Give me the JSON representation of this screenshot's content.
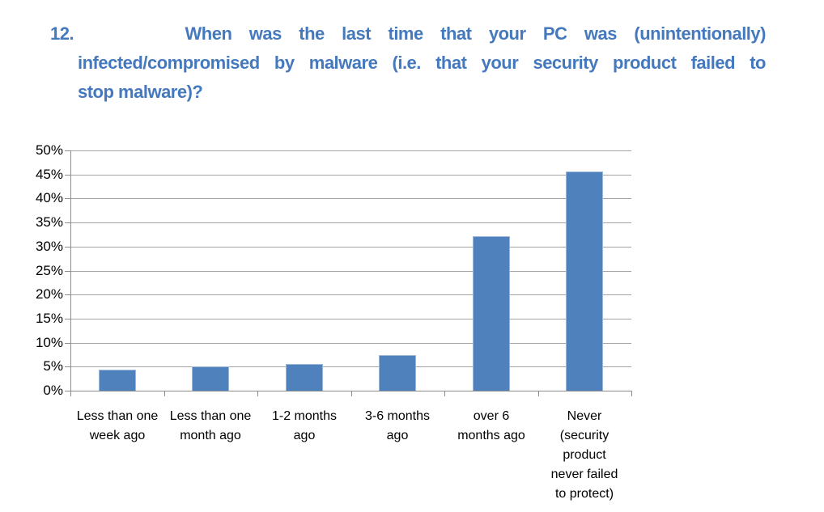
{
  "title": {
    "number": "12.",
    "line1": "When was the last time that your PC was (unintentionally)",
    "line2": "infected/compromised by malware (i.e. that your security product failed to",
    "line3": "stop malware)?"
  },
  "chart_data": {
    "type": "bar",
    "title": "",
    "xlabel": "",
    "ylabel": "",
    "categories": [
      "Less than one week ago",
      "Less than one month ago",
      "1-2 months ago",
      "3-6 months ago",
      "over 6 months ago",
      "Never (security product never failed to protect)"
    ],
    "category_label_lines": [
      [
        "Less than one",
        "week ago"
      ],
      [
        "Less than one",
        "month ago"
      ],
      [
        "1-2 months",
        "ago"
      ],
      [
        "3-6 months",
        "ago"
      ],
      [
        "over 6",
        "months ago"
      ],
      [
        "Never",
        "(security",
        "product",
        "never failed",
        "to protect)"
      ]
    ],
    "values": [
      4.3,
      5.0,
      5.5,
      7.4,
      32.2,
      45.6
    ],
    "unit": "%",
    "ylim": [
      0,
      50
    ],
    "ytick_step": 5,
    "ytick_labels": [
      "0%",
      "5%",
      "10%",
      "15%",
      "20%",
      "25%",
      "30%",
      "35%",
      "40%",
      "45%",
      "50%"
    ],
    "grid": true,
    "legend_position": "none",
    "bar_color": "#4f81bd",
    "bar_edge_color": "#9db9da",
    "gridline_color": "#a3a3a3",
    "axis_color": "#8c8c8c",
    "tick_label_color": "#000000"
  },
  "colors": {
    "title_text": "#4579bd",
    "background": "#ffffff"
  }
}
